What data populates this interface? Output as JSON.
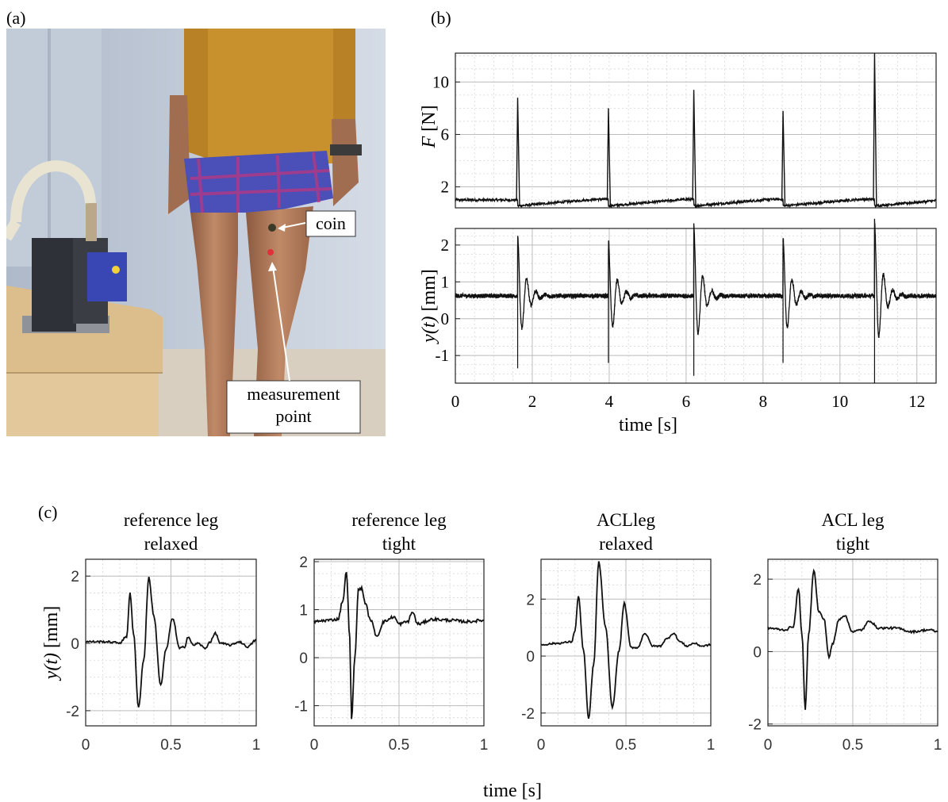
{
  "figure": {
    "panel_labels": [
      "(a)",
      "(b)",
      "(c)"
    ],
    "photo": {
      "annotations": [
        "coin",
        "measurement point"
      ],
      "colors": {
        "wall": "#c9d3e0",
        "shirt": "#c8912e",
        "skin": "#b07a5a",
        "shorts": "#4a50b8",
        "box": "#d8b98a",
        "device": "#2f3238",
        "sensor": "#3b4bb8",
        "hose": "#e9e4d2"
      }
    },
    "xlabel_shared_c": "time [s]"
  },
  "chart_data": [
    {
      "id": "b_top",
      "type": "line",
      "title": "",
      "ylabel_italic": "F",
      "ylabel_rest": " [N]",
      "xlim": [
        0,
        12.5
      ],
      "ylim": [
        0.4,
        12.2
      ],
      "yticks": [
        2,
        6,
        10
      ],
      "yticklabels": [
        "2",
        "6",
        "10"
      ],
      "grid": true,
      "baseline": 1.0,
      "impacts": [
        {
          "t": 1.62,
          "peak": 8.8
        },
        {
          "t": 3.98,
          "peak": 8.0
        },
        {
          "t": 6.2,
          "peak": 9.4
        },
        {
          "t": 8.52,
          "peak": 7.8
        },
        {
          "t": 10.9,
          "peak": 12.2
        }
      ]
    },
    {
      "id": "b_bottom",
      "type": "line",
      "ylabel_italic": "y(t)",
      "ylabel_rest": " [mm]",
      "xlabel": "time [s]",
      "xlim": [
        0,
        12.5
      ],
      "ylim": [
        -1.75,
        2.45
      ],
      "xticks": [
        0,
        2,
        4,
        6,
        8,
        10,
        12
      ],
      "xticklabels": [
        "0",
        "2",
        "4",
        "6",
        "8",
        "10",
        "12"
      ],
      "yticks": [
        -1,
        0,
        1,
        2
      ],
      "yticklabels": [
        "-1",
        "0",
        "1",
        "2"
      ],
      "grid": true,
      "baseline": 0.62,
      "responses": [
        {
          "t": 1.62,
          "max": 2.0,
          "min": -1.35
        },
        {
          "t": 3.98,
          "max": 1.9,
          "min": -1.2
        },
        {
          "t": 6.2,
          "max": 2.3,
          "min": -1.55
        },
        {
          "t": 8.52,
          "max": 2.0,
          "min": -1.2
        },
        {
          "t": 10.9,
          "max": 2.4,
          "min": -1.75
        }
      ]
    },
    {
      "id": "c1",
      "type": "line",
      "title_lines": [
        "reference leg",
        "relaxed"
      ],
      "ylabel_italic": "y(t)",
      "ylabel_rest": " [mm]",
      "xlim": [
        0,
        1
      ],
      "ylim": [
        -2.45,
        2.5
      ],
      "xticks": [
        0,
        0.5,
        1
      ],
      "xticklabels": [
        "0",
        "0.5",
        "1"
      ],
      "yticks": [
        -2,
        0,
        2
      ],
      "yticklabels": [
        "-2",
        "0",
        "2"
      ],
      "grid": true,
      "points": [
        [
          0,
          0.05
        ],
        [
          0.1,
          0.05
        ],
        [
          0.2,
          0.02
        ],
        [
          0.24,
          0.2
        ],
        [
          0.26,
          1.5
        ],
        [
          0.28,
          0.3
        ],
        [
          0.31,
          -1.9
        ],
        [
          0.34,
          -0.5
        ],
        [
          0.37,
          1.95
        ],
        [
          0.4,
          0.8
        ],
        [
          0.44,
          -1.25
        ],
        [
          0.47,
          -0.2
        ],
        [
          0.51,
          0.75
        ],
        [
          0.55,
          -0.15
        ],
        [
          0.58,
          -0.1
        ],
        [
          0.6,
          0.2
        ],
        [
          0.63,
          -0.05
        ],
        [
          0.66,
          0.0
        ],
        [
          0.7,
          -0.15
        ],
        [
          0.73,
          0.05
        ],
        [
          0.76,
          0.3
        ],
        [
          0.79,
          0.0
        ],
        [
          0.85,
          -0.05
        ],
        [
          0.9,
          0.05
        ],
        [
          0.95,
          -0.1
        ],
        [
          1.0,
          0.1
        ]
      ]
    },
    {
      "id": "c2",
      "type": "line",
      "title_lines": [
        "reference leg",
        "tight"
      ],
      "xlim": [
        0,
        1
      ],
      "ylim": [
        -1.42,
        2.05
      ],
      "xticks": [
        0,
        0.5,
        1
      ],
      "xticklabels": [
        "0",
        "0.5",
        "1"
      ],
      "yticks": [
        -1,
        0,
        1,
        2
      ],
      "yticklabels": [
        "-1",
        "0",
        "1",
        "2"
      ],
      "grid": true,
      "points": [
        [
          0,
          0.75
        ],
        [
          0.08,
          0.78
        ],
        [
          0.14,
          0.8
        ],
        [
          0.17,
          1.2
        ],
        [
          0.19,
          1.8
        ],
        [
          0.21,
          0.4
        ],
        [
          0.22,
          -1.3
        ],
        [
          0.24,
          0.0
        ],
        [
          0.26,
          1.4
        ],
        [
          0.28,
          1.45
        ],
        [
          0.3,
          1.15
        ],
        [
          0.33,
          0.8
        ],
        [
          0.37,
          0.45
        ],
        [
          0.41,
          0.75
        ],
        [
          0.47,
          0.85
        ],
        [
          0.5,
          0.7
        ],
        [
          0.55,
          0.75
        ],
        [
          0.58,
          0.95
        ],
        [
          0.61,
          0.7
        ],
        [
          0.7,
          0.8
        ],
        [
          0.8,
          0.78
        ],
        [
          0.9,
          0.75
        ],
        [
          1.0,
          0.78
        ]
      ]
    },
    {
      "id": "c3",
      "type": "line",
      "title_lines": [
        "ACLleg",
        "relaxed"
      ],
      "xlim": [
        0,
        1
      ],
      "ylim": [
        -2.45,
        3.4
      ],
      "xticks": [
        0,
        0.5,
        1
      ],
      "xticklabels": [
        "0",
        "0.5",
        "1"
      ],
      "yticks": [
        -2,
        0,
        2
      ],
      "yticklabels": [
        "-2",
        "0",
        "2"
      ],
      "grid": true,
      "points": [
        [
          0,
          0.4
        ],
        [
          0.1,
          0.45
        ],
        [
          0.18,
          0.5
        ],
        [
          0.2,
          0.9
        ],
        [
          0.22,
          2.1
        ],
        [
          0.25,
          0.2
        ],
        [
          0.28,
          -2.2
        ],
        [
          0.31,
          -0.3
        ],
        [
          0.34,
          3.3
        ],
        [
          0.38,
          1.0
        ],
        [
          0.42,
          -1.8
        ],
        [
          0.46,
          0.2
        ],
        [
          0.49,
          1.85
        ],
        [
          0.53,
          0.3
        ],
        [
          0.57,
          0.3
        ],
        [
          0.61,
          0.8
        ],
        [
          0.66,
          0.35
        ],
        [
          0.7,
          0.35
        ],
        [
          0.74,
          0.6
        ],
        [
          0.78,
          0.8
        ],
        [
          0.82,
          0.5
        ],
        [
          0.86,
          0.35
        ],
        [
          0.9,
          0.45
        ],
        [
          0.95,
          0.35
        ],
        [
          1.0,
          0.4
        ]
      ]
    },
    {
      "id": "c4",
      "type": "line",
      "title_lines": [
        "ACL leg",
        "tight"
      ],
      "xlim": [
        0,
        1
      ],
      "ylim": [
        -2.05,
        2.55
      ],
      "xticks": [
        0,
        0.5,
        1
      ],
      "xticklabels": [
        "0",
        "0.5",
        "1"
      ],
      "yticks": [
        -2,
        0,
        2
      ],
      "yticklabels": [
        "-2",
        "0",
        "2"
      ],
      "grid": true,
      "points": [
        [
          0,
          0.65
        ],
        [
          0.1,
          0.6
        ],
        [
          0.15,
          0.7
        ],
        [
          0.18,
          1.75
        ],
        [
          0.2,
          0.5
        ],
        [
          0.22,
          -1.6
        ],
        [
          0.24,
          0.5
        ],
        [
          0.27,
          2.25
        ],
        [
          0.3,
          1.1
        ],
        [
          0.33,
          0.9
        ],
        [
          0.36,
          -0.15
        ],
        [
          0.38,
          0.2
        ],
        [
          0.42,
          0.9
        ],
        [
          0.45,
          1.0
        ],
        [
          0.5,
          0.55
        ],
        [
          0.55,
          0.6
        ],
        [
          0.6,
          0.85
        ],
        [
          0.65,
          0.65
        ],
        [
          0.75,
          0.65
        ],
        [
          0.85,
          0.55
        ],
        [
          0.95,
          0.6
        ],
        [
          1.0,
          0.55
        ]
      ]
    }
  ]
}
